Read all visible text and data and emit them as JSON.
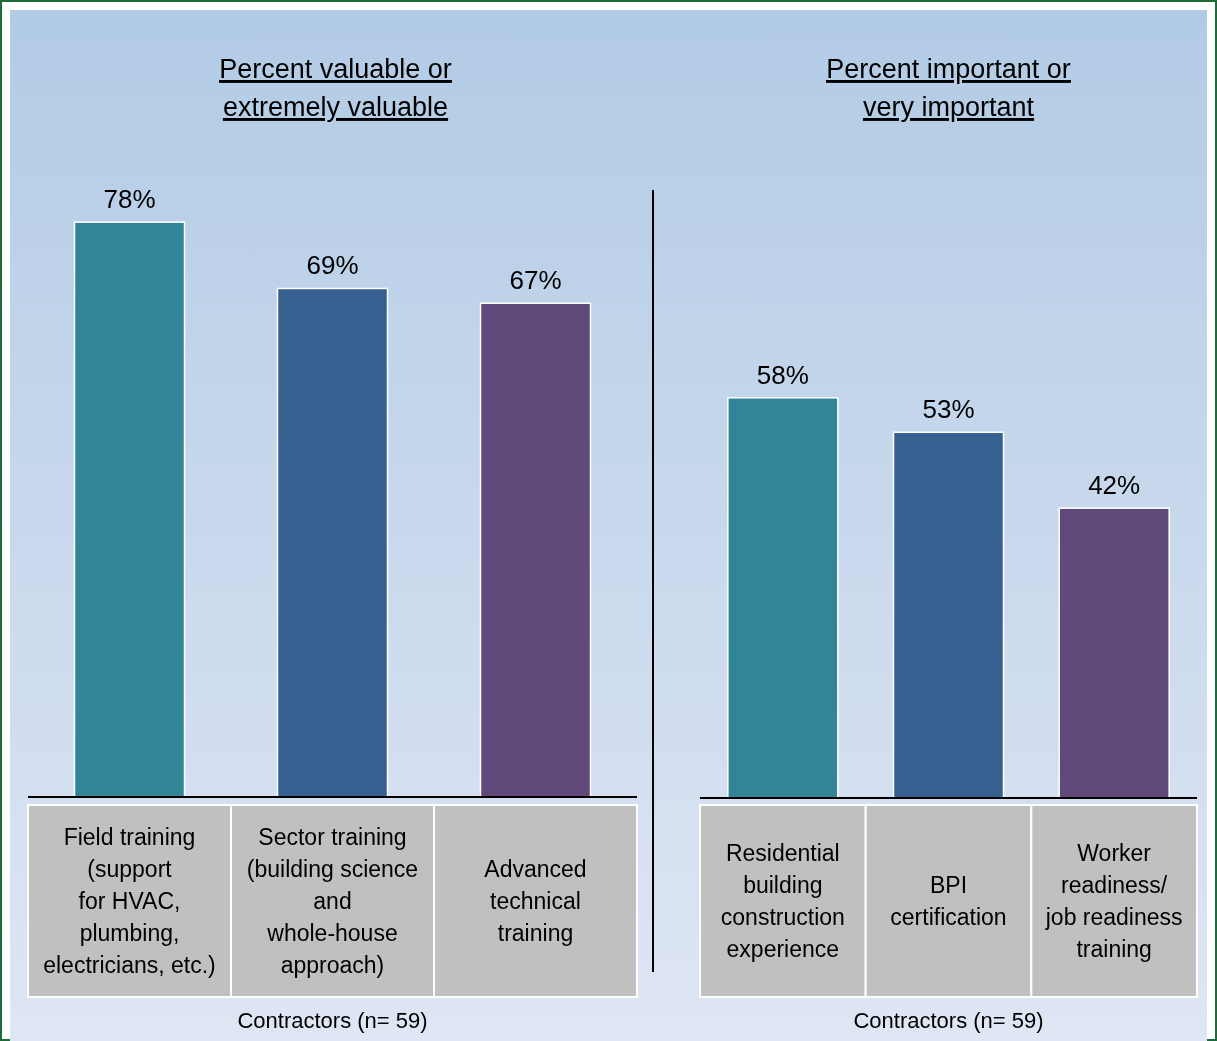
{
  "chart_data": [
    {
      "type": "bar",
      "title": "Percent valuable or\nextremely valuable",
      "categories": [
        "Field training\n(support\nfor HVAC,\nplumbing,\nelectricians, etc.)",
        "Sector training\n(building science\nand\nwhole-house\napproach)",
        "Advanced\ntechnical\ntraining"
      ],
      "values": [
        78,
        69,
        67
      ],
      "colors": [
        "#318597",
        "#366090",
        "#604a7b"
      ],
      "value_labels": [
        "78%",
        "69%",
        "67%"
      ],
      "annotations": [
        "Contractors (n= 59)"
      ]
    },
    {
      "type": "bar",
      "title": "Percent important or\nvery important",
      "categories": [
        "Residential\nbuilding\nconstruction\nexperience",
        "BPI\ncertification",
        "Worker\nreadiness/\njob readiness\ntraining"
      ],
      "values": [
        58,
        53,
        42
      ],
      "colors": [
        "#318597",
        "#366090",
        "#604a7b"
      ],
      "value_labels": [
        "58%",
        "53%",
        "42%"
      ],
      "annotations": [
        "Contractors (n= 59)"
      ]
    }
  ]
}
